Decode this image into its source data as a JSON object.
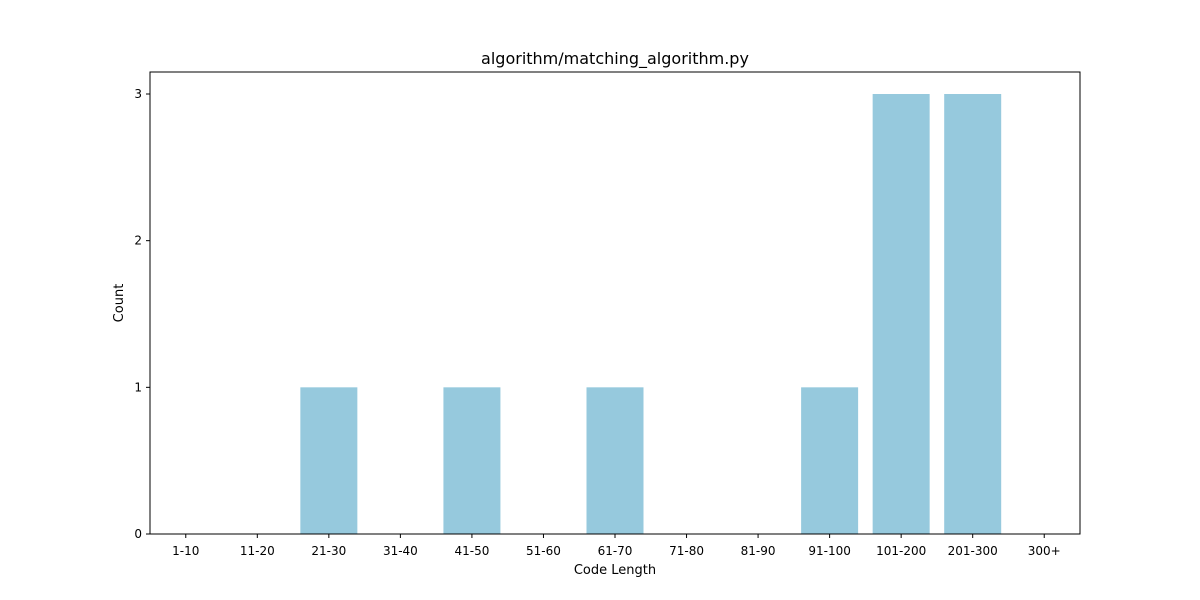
{
  "chart_data": {
    "type": "bar",
    "title": "algorithm/matching_algorithm.py",
    "xlabel": "Code Length",
    "ylabel": "Count",
    "categories": [
      "1-10",
      "11-20",
      "21-30",
      "31-40",
      "41-50",
      "51-60",
      "61-70",
      "71-80",
      "81-90",
      "91-100",
      "101-200",
      "201-300",
      "300+"
    ],
    "values": [
      0,
      0,
      1,
      0,
      1,
      0,
      1,
      0,
      0,
      1,
      3,
      3,
      0
    ],
    "ylim": [
      0,
      3.15
    ],
    "yticks": [
      0,
      1,
      2,
      3
    ],
    "grid": false,
    "bar_color": "#96c9dd"
  }
}
